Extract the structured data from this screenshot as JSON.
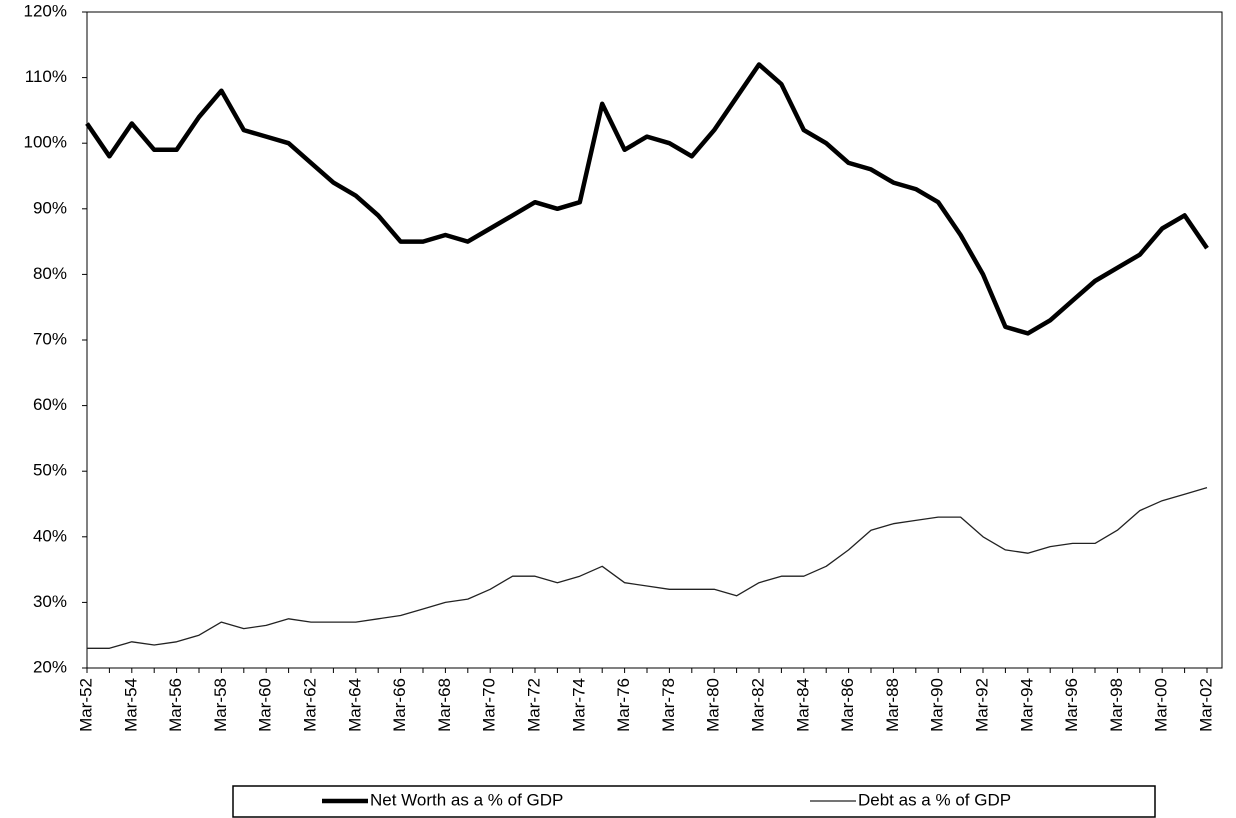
{
  "chart_data": {
    "type": "line",
    "categories": [
      "Mar-52",
      null,
      "Mar-54",
      null,
      "Mar-56",
      null,
      "Mar-58",
      null,
      "Mar-60",
      null,
      "Mar-62",
      null,
      "Mar-64",
      null,
      "Mar-66",
      null,
      "Mar-68",
      null,
      "Mar-70",
      null,
      "Mar-72",
      null,
      "Mar-74",
      null,
      "Mar-76",
      null,
      "Mar-78",
      null,
      "Mar-80",
      null,
      "Mar-82",
      null,
      "Mar-84",
      null,
      "Mar-86",
      null,
      "Mar-88",
      null,
      "Mar-90",
      null,
      "Mar-92",
      null,
      "Mar-94",
      null,
      "Mar-96",
      null,
      "Mar-98",
      null,
      "Mar-00",
      null,
      "Mar-02"
    ],
    "series": [
      {
        "name": "Net Worth as a % of GDP",
        "color": "#000000",
        "line_width": 4.5,
        "values": [
          103,
          98,
          103,
          99,
          99,
          104,
          108,
          102,
          101,
          100,
          97,
          94,
          92,
          89,
          85,
          85,
          86,
          85,
          87,
          89,
          91,
          90,
          91,
          106,
          99,
          101,
          100,
          98,
          102,
          107,
          112,
          109,
          102,
          100,
          97,
          96,
          94,
          93,
          91,
          86,
          80,
          72,
          71,
          73,
          76,
          79,
          81,
          83,
          87,
          89,
          84
        ]
      },
      {
        "name": "Debt as a % of GDP",
        "color": "#222222",
        "line_width": 1.3,
        "values": [
          23,
          23,
          24,
          23.5,
          24,
          25,
          27,
          26,
          26.5,
          27.5,
          27,
          27,
          27,
          27.5,
          28,
          29,
          30,
          30.5,
          32,
          34,
          34,
          33,
          34,
          35.5,
          33,
          32.5,
          32,
          32,
          32,
          31,
          33,
          34,
          34,
          35.5,
          38,
          41,
          42,
          42.5,
          43,
          43,
          40,
          38,
          37.5,
          38.5,
          39,
          39,
          41,
          44,
          45.5,
          46.5,
          47.5
        ]
      }
    ],
    "ylim": [
      20,
      120
    ],
    "yticks": [
      {
        "value": 20,
        "label": "20%"
      },
      {
        "value": 30,
        "label": "30%"
      },
      {
        "value": 40,
        "label": "40%"
      },
      {
        "value": 50,
        "label": "50%"
      },
      {
        "value": 60,
        "label": "60%"
      },
      {
        "value": 70,
        "label": "70%"
      },
      {
        "value": 80,
        "label": "80%"
      },
      {
        "value": 90,
        "label": "90%"
      },
      {
        "value": 100,
        "label": "100%"
      },
      {
        "value": 110,
        "label": "110%"
      },
      {
        "value": 120,
        "label": "120%"
      }
    ],
    "grid": false,
    "legend": "bottom"
  }
}
